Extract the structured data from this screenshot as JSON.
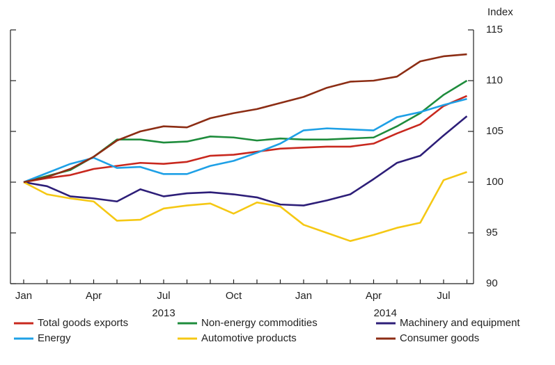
{
  "chart_data": {
    "type": "line",
    "y_axis_label": "Index",
    "categories": [
      "Jan",
      null,
      null,
      "Apr",
      null,
      null,
      "Jul",
      null,
      null,
      "Oct",
      null,
      null,
      "Jan",
      null,
      null,
      "Apr",
      null,
      null,
      "Jul",
      null
    ],
    "years": [
      "2013",
      "2014"
    ],
    "ylim": [
      90,
      115
    ],
    "yticks": [
      90,
      95,
      100,
      105,
      110,
      115
    ],
    "series": [
      {
        "name": "Total goods exports",
        "color": "#c8281e",
        "values": [
          100,
          100.4,
          100.7,
          101.3,
          101.6,
          101.9,
          101.8,
          102.0,
          102.6,
          102.7,
          103.0,
          103.3,
          103.4,
          103.5,
          103.5,
          103.8,
          104.8,
          105.7,
          107.5,
          108.5
        ]
      },
      {
        "name": "Non-energy commodities",
        "color": "#1e8c3c",
        "values": [
          100,
          100.6,
          101.2,
          102.5,
          104.2,
          104.2,
          103.9,
          104.0,
          104.5,
          104.4,
          104.1,
          104.3,
          104.2,
          104.2,
          104.3,
          104.4,
          105.5,
          106.8,
          108.6,
          110.0
        ]
      },
      {
        "name": "Machinery and equipment",
        "color": "#2d1e78",
        "values": [
          100,
          99.6,
          98.6,
          98.4,
          98.1,
          99.3,
          98.6,
          98.9,
          99.0,
          98.8,
          98.5,
          97.8,
          97.7,
          98.2,
          98.8,
          100.3,
          101.9,
          102.6,
          104.6,
          106.5
        ]
      },
      {
        "name": "Energy",
        "color": "#1ea0e6",
        "values": [
          100,
          100.9,
          101.8,
          102.4,
          101.4,
          101.5,
          100.8,
          100.8,
          101.6,
          102.1,
          102.9,
          103.8,
          105.1,
          105.3,
          105.2,
          105.1,
          106.4,
          106.9,
          107.6,
          108.2
        ]
      },
      {
        "name": "Automotive products",
        "color": "#f5c814",
        "values": [
          100,
          98.8,
          98.4,
          98.1,
          96.2,
          96.3,
          97.4,
          97.7,
          97.9,
          96.9,
          98.0,
          97.6,
          95.8,
          95.0,
          94.2,
          94.8,
          95.5,
          96.0,
          100.2,
          101.0
        ]
      },
      {
        "name": "Consumer goods",
        "color": "#8c2d14",
        "values": [
          100,
          100.5,
          101.3,
          102.5,
          104.1,
          105.0,
          105.5,
          105.4,
          106.3,
          106.8,
          107.2,
          107.8,
          108.4,
          109.3,
          109.9,
          110.0,
          110.4,
          111.9,
          112.4,
          112.6
        ]
      }
    ]
  }
}
